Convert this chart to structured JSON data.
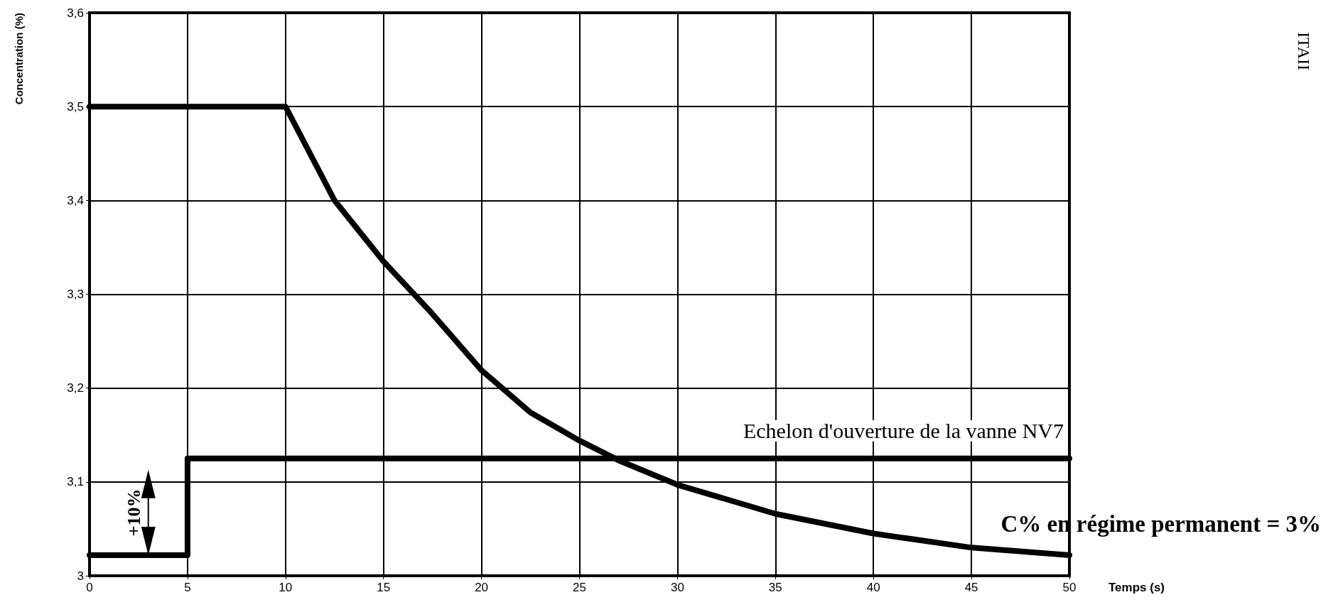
{
  "chart_data": {
    "type": "line",
    "xlabel": "Temps (s)",
    "ylabel": "Concentration (%)",
    "xlim": [
      0,
      50
    ],
    "xticks": [
      0,
      5,
      10,
      15,
      20,
      25,
      30,
      35,
      40,
      45,
      50
    ],
    "ylim": [
      3,
      3.6
    ],
    "yticks": [
      {
        "value": 3,
        "label": "3"
      },
      {
        "value": 3.1,
        "label": "3,1"
      },
      {
        "value": 3.2,
        "label": "3,2"
      },
      {
        "value": 3.3,
        "label": "3,3"
      },
      {
        "value": 3.4,
        "label": "3,4"
      },
      {
        "value": 3.5,
        "label": "3,5"
      },
      {
        "value": 3.6,
        "label": "3,6"
      }
    ],
    "grid": true,
    "legend": false,
    "line_style": "solid",
    "series": [
      {
        "color": "#000000",
        "x": [
          0,
          10,
          12.5,
          15,
          17.5,
          20,
          22.5,
          25,
          27,
          30,
          35,
          40,
          45,
          50
        ],
        "values": [
          3.5,
          3.5,
          3.4,
          3.335,
          3.279,
          3.219,
          3.174,
          3.144,
          3.123,
          3.097,
          3.066,
          3.045,
          3.03,
          3.022
        ]
      },
      {
        "type": "step",
        "name": "Echelon d'ouverture de la vanne NV7",
        "color": "#000000",
        "x": [
          0,
          5,
          50
        ],
        "values": [
          3.022,
          3.125,
          3.125
        ]
      }
    ],
    "annotations": [
      "+10%",
      "C% en régime permanent = 3%",
      "ITAII"
    ]
  }
}
